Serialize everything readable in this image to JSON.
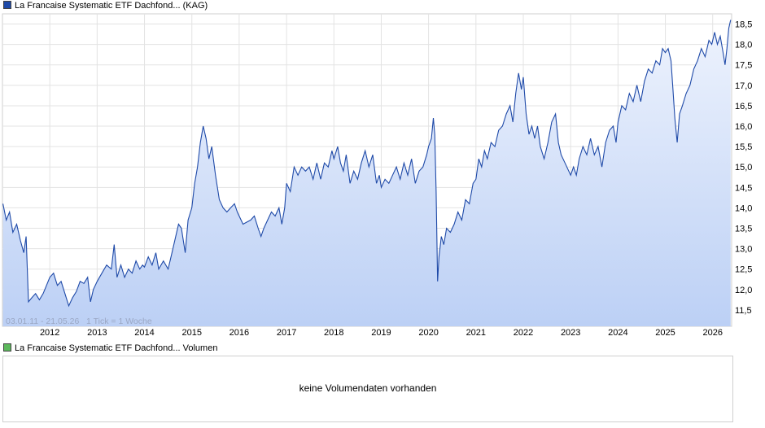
{
  "legend_price": {
    "label": "La Francaise Systematic ETF Dachfond... (KAG)",
    "color": "#1f4aa8"
  },
  "legend_volume": {
    "label": "La Francaise Systematic ETF Dachfond... Volumen",
    "color": "#5cb85c"
  },
  "info_text": "03.01.11 - 21.05.26   1 Tick = 1 Woche",
  "volume_message": "keine Volumendaten vorhanden",
  "chart_data": {
    "type": "area",
    "x_ticks": [
      "2012",
      "2013",
      "2014",
      "2015",
      "2016",
      "2017",
      "2018",
      "2019",
      "2020",
      "2021",
      "2022",
      "2023",
      "2024",
      "2025",
      "2026"
    ],
    "y_ticks": [
      "11,5",
      "12,0",
      "12,5",
      "13,0",
      "13,5",
      "14,0",
      "14,5",
      "15,0",
      "15,5",
      "16,0",
      "16,5",
      "17,0",
      "17,5",
      "18,0",
      "18,5"
    ],
    "xlim": [
      2011.0,
      2026.4
    ],
    "ylim": [
      11.1,
      18.75
    ],
    "series": [
      {
        "line_color": "#1f4aa8",
        "fill_top": "#eef3fd",
        "fill_bottom": "#bcd0f5",
        "points": [
          [
            2011.01,
            14.1
          ],
          [
            2011.08,
            13.7
          ],
          [
            2011.15,
            13.9
          ],
          [
            2011.22,
            13.4
          ],
          [
            2011.3,
            13.6
          ],
          [
            2011.38,
            13.2
          ],
          [
            2011.45,
            12.9
          ],
          [
            2011.5,
            13.3
          ],
          [
            2011.55,
            11.7
          ],
          [
            2011.62,
            11.8
          ],
          [
            2011.7,
            11.9
          ],
          [
            2011.78,
            11.75
          ],
          [
            2011.86,
            11.9
          ],
          [
            2011.93,
            12.1
          ],
          [
            2012.0,
            12.3
          ],
          [
            2012.08,
            12.4
          ],
          [
            2012.16,
            12.1
          ],
          [
            2012.24,
            12.2
          ],
          [
            2012.32,
            11.9
          ],
          [
            2012.4,
            11.6
          ],
          [
            2012.48,
            11.8
          ],
          [
            2012.56,
            11.95
          ],
          [
            2012.64,
            12.2
          ],
          [
            2012.72,
            12.15
          ],
          [
            2012.8,
            12.3
          ],
          [
            2012.86,
            11.7
          ],
          [
            2012.92,
            12.0
          ],
          [
            2013.0,
            12.2
          ],
          [
            2013.1,
            12.4
          ],
          [
            2013.2,
            12.6
          ],
          [
            2013.3,
            12.5
          ],
          [
            2013.36,
            13.1
          ],
          [
            2013.42,
            12.3
          ],
          [
            2013.5,
            12.6
          ],
          [
            2013.58,
            12.3
          ],
          [
            2013.66,
            12.5
          ],
          [
            2013.74,
            12.4
          ],
          [
            2013.82,
            12.7
          ],
          [
            2013.9,
            12.5
          ],
          [
            2013.96,
            12.6
          ],
          [
            2014.0,
            12.55
          ],
          [
            2014.08,
            12.8
          ],
          [
            2014.16,
            12.6
          ],
          [
            2014.24,
            12.9
          ],
          [
            2014.3,
            12.5
          ],
          [
            2014.4,
            12.7
          ],
          [
            2014.5,
            12.5
          ],
          [
            2014.58,
            12.9
          ],
          [
            2014.66,
            13.3
          ],
          [
            2014.72,
            13.6
          ],
          [
            2014.78,
            13.5
          ],
          [
            2014.86,
            12.9
          ],
          [
            2014.92,
            13.7
          ],
          [
            2015.0,
            14.0
          ],
          [
            2015.06,
            14.6
          ],
          [
            2015.12,
            15.0
          ],
          [
            2015.18,
            15.6
          ],
          [
            2015.24,
            16.0
          ],
          [
            2015.3,
            15.7
          ],
          [
            2015.36,
            15.2
          ],
          [
            2015.42,
            15.5
          ],
          [
            2015.5,
            14.8
          ],
          [
            2015.58,
            14.2
          ],
          [
            2015.66,
            14.0
          ],
          [
            2015.74,
            13.9
          ],
          [
            2015.82,
            14.0
          ],
          [
            2015.9,
            14.1
          ],
          [
            2015.96,
            13.9
          ],
          [
            2016.0,
            13.8
          ],
          [
            2016.08,
            13.6
          ],
          [
            2016.16,
            13.65
          ],
          [
            2016.24,
            13.7
          ],
          [
            2016.32,
            13.8
          ],
          [
            2016.4,
            13.5
          ],
          [
            2016.46,
            13.3
          ],
          [
            2016.52,
            13.5
          ],
          [
            2016.6,
            13.7
          ],
          [
            2016.68,
            13.9
          ],
          [
            2016.76,
            13.8
          ],
          [
            2016.84,
            14.0
          ],
          [
            2016.9,
            13.6
          ],
          [
            2016.96,
            14.0
          ],
          [
            2017.0,
            14.6
          ],
          [
            2017.08,
            14.4
          ],
          [
            2017.16,
            15.0
          ],
          [
            2017.24,
            14.8
          ],
          [
            2017.32,
            15.0
          ],
          [
            2017.4,
            14.9
          ],
          [
            2017.48,
            15.0
          ],
          [
            2017.56,
            14.7
          ],
          [
            2017.64,
            15.1
          ],
          [
            2017.72,
            14.7
          ],
          [
            2017.8,
            15.1
          ],
          [
            2017.88,
            15.0
          ],
          [
            2017.96,
            15.4
          ],
          [
            2018.0,
            15.2
          ],
          [
            2018.08,
            15.5
          ],
          [
            2018.14,
            15.1
          ],
          [
            2018.2,
            14.9
          ],
          [
            2018.26,
            15.3
          ],
          [
            2018.34,
            14.6
          ],
          [
            2018.42,
            14.9
          ],
          [
            2018.5,
            14.7
          ],
          [
            2018.58,
            15.1
          ],
          [
            2018.66,
            15.4
          ],
          [
            2018.74,
            15.0
          ],
          [
            2018.82,
            15.3
          ],
          [
            2018.9,
            14.6
          ],
          [
            2018.96,
            14.8
          ],
          [
            2019.0,
            14.5
          ],
          [
            2019.08,
            14.7
          ],
          [
            2019.16,
            14.6
          ],
          [
            2019.24,
            14.8
          ],
          [
            2019.32,
            15.0
          ],
          [
            2019.4,
            14.7
          ],
          [
            2019.48,
            15.1
          ],
          [
            2019.56,
            14.8
          ],
          [
            2019.64,
            15.2
          ],
          [
            2019.72,
            14.6
          ],
          [
            2019.8,
            14.9
          ],
          [
            2019.88,
            15.0
          ],
          [
            2019.96,
            15.3
          ],
          [
            2020.0,
            15.5
          ],
          [
            2020.06,
            15.7
          ],
          [
            2020.1,
            16.2
          ],
          [
            2020.13,
            15.8
          ],
          [
            2020.16,
            14.4
          ],
          [
            2020.19,
            12.2
          ],
          [
            2020.22,
            12.8
          ],
          [
            2020.27,
            13.3
          ],
          [
            2020.32,
            13.1
          ],
          [
            2020.38,
            13.5
          ],
          [
            2020.46,
            13.4
          ],
          [
            2020.54,
            13.6
          ],
          [
            2020.62,
            13.9
          ],
          [
            2020.7,
            13.7
          ],
          [
            2020.78,
            14.2
          ],
          [
            2020.86,
            14.1
          ],
          [
            2020.94,
            14.6
          ],
          [
            2021.0,
            14.7
          ],
          [
            2021.06,
            15.2
          ],
          [
            2021.12,
            15.0
          ],
          [
            2021.18,
            15.4
          ],
          [
            2021.24,
            15.2
          ],
          [
            2021.32,
            15.6
          ],
          [
            2021.4,
            15.5
          ],
          [
            2021.48,
            15.9
          ],
          [
            2021.56,
            16.0
          ],
          [
            2021.64,
            16.3
          ],
          [
            2021.72,
            16.5
          ],
          [
            2021.78,
            16.1
          ],
          [
            2021.84,
            16.8
          ],
          [
            2021.9,
            17.3
          ],
          [
            2021.96,
            16.9
          ],
          [
            2022.0,
            17.2
          ],
          [
            2022.06,
            16.3
          ],
          [
            2022.12,
            15.8
          ],
          [
            2022.18,
            16.0
          ],
          [
            2022.24,
            15.7
          ],
          [
            2022.3,
            16.0
          ],
          [
            2022.36,
            15.5
          ],
          [
            2022.44,
            15.2
          ],
          [
            2022.52,
            15.6
          ],
          [
            2022.6,
            16.1
          ],
          [
            2022.68,
            16.3
          ],
          [
            2022.74,
            15.6
          ],
          [
            2022.8,
            15.3
          ],
          [
            2022.88,
            15.1
          ],
          [
            2022.96,
            14.9
          ],
          [
            2023.0,
            14.8
          ],
          [
            2023.06,
            15.0
          ],
          [
            2023.12,
            14.8
          ],
          [
            2023.18,
            15.2
          ],
          [
            2023.26,
            15.5
          ],
          [
            2023.34,
            15.3
          ],
          [
            2023.42,
            15.7
          ],
          [
            2023.5,
            15.3
          ],
          [
            2023.58,
            15.5
          ],
          [
            2023.66,
            15.0
          ],
          [
            2023.74,
            15.6
          ],
          [
            2023.82,
            15.9
          ],
          [
            2023.9,
            16.0
          ],
          [
            2023.96,
            15.6
          ],
          [
            2024.0,
            16.1
          ],
          [
            2024.08,
            16.5
          ],
          [
            2024.16,
            16.4
          ],
          [
            2024.24,
            16.8
          ],
          [
            2024.32,
            16.6
          ],
          [
            2024.4,
            17.0
          ],
          [
            2024.48,
            16.6
          ],
          [
            2024.56,
            17.1
          ],
          [
            2024.64,
            17.4
          ],
          [
            2024.72,
            17.3
          ],
          [
            2024.8,
            17.6
          ],
          [
            2024.88,
            17.5
          ],
          [
            2024.94,
            17.9
          ],
          [
            2025.0,
            17.8
          ],
          [
            2025.06,
            17.9
          ],
          [
            2025.12,
            17.6
          ],
          [
            2025.16,
            16.9
          ],
          [
            2025.2,
            16.2
          ],
          [
            2025.25,
            15.6
          ],
          [
            2025.3,
            16.3
          ],
          [
            2025.36,
            16.5
          ],
          [
            2025.44,
            16.8
          ],
          [
            2025.52,
            17.0
          ],
          [
            2025.6,
            17.4
          ],
          [
            2025.68,
            17.6
          ],
          [
            2025.76,
            17.9
          ],
          [
            2025.84,
            17.7
          ],
          [
            2025.92,
            18.1
          ],
          [
            2025.98,
            18.0
          ],
          [
            2026.04,
            18.3
          ],
          [
            2026.1,
            18.0
          ],
          [
            2026.16,
            18.2
          ],
          [
            2026.22,
            17.8
          ],
          [
            2026.26,
            17.5
          ],
          [
            2026.3,
            17.9
          ],
          [
            2026.34,
            18.4
          ],
          [
            2026.38,
            18.6
          ]
        ]
      }
    ]
  }
}
